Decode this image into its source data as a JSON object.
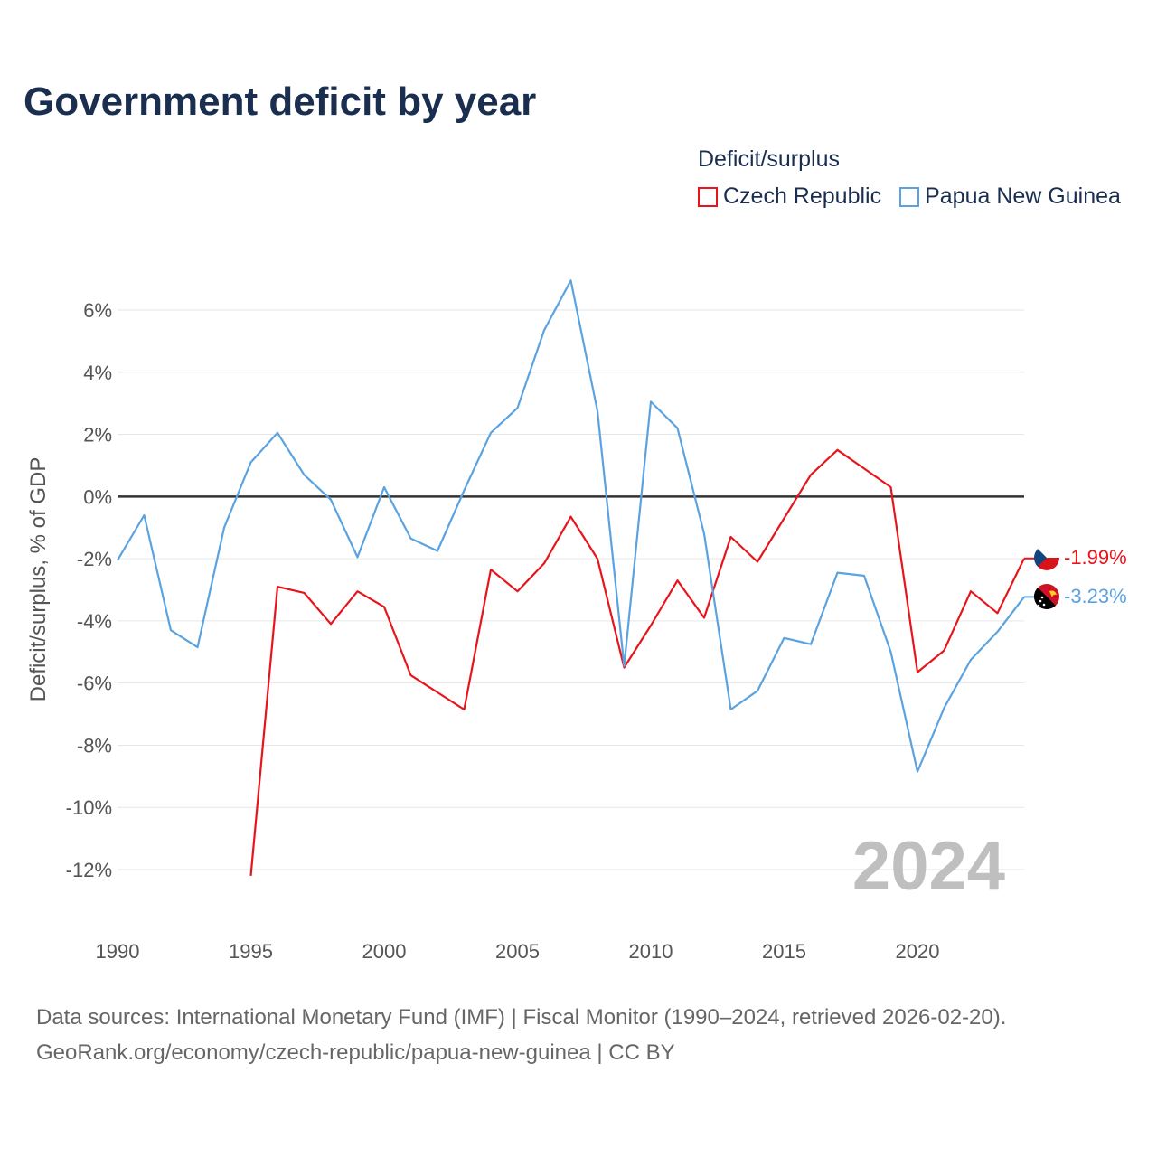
{
  "title": "Government deficit by year",
  "legend": {
    "title": "Deficit/surplus",
    "items": [
      {
        "label": "Czech Republic",
        "color": "#e8141b"
      },
      {
        "label": "Papua New Guinea",
        "color": "#5ba3e0"
      }
    ]
  },
  "source": {
    "line1": "Data sources: International Monetary Fund (IMF) | Fiscal Monitor (1990–2024, retrieved 2026-02-20).",
    "line2": "GeoRank.org/economy/czech-republic/papua-new-guinea | CC BY"
  },
  "chart_data": {
    "type": "line",
    "title": "Government deficit by year",
    "xlabel": "",
    "ylabel": "Deficit/surplus, % of GDP",
    "year_label": "2024",
    "xlim": [
      1990,
      2024
    ],
    "ylim": [
      -13,
      7
    ],
    "x_ticks": [
      1990,
      1995,
      2000,
      2005,
      2010,
      2015,
      2020
    ],
    "y_ticks": [
      6,
      4,
      2,
      0,
      -2,
      -4,
      -6,
      -8,
      -10,
      -12
    ],
    "y_tick_labels": [
      "6%",
      "4%",
      "2%",
      "0%",
      "-2%",
      "-4%",
      "-6%",
      "-8%",
      "-10%",
      "-12%"
    ],
    "zero_line": true,
    "series": [
      {
        "name": "Czech Republic",
        "color": "#e8141b",
        "end_label": "-1.99%",
        "flag": "czech-republic-flag-icon",
        "x": [
          1995,
          1996,
          1997,
          1998,
          1999,
          2000,
          2001,
          2002,
          2003,
          2004,
          2005,
          2006,
          2007,
          2008,
          2009,
          2010,
          2011,
          2012,
          2013,
          2014,
          2015,
          2016,
          2017,
          2018,
          2019,
          2020,
          2021,
          2022,
          2023,
          2024
        ],
        "values": [
          -12.2,
          -2.9,
          -3.1,
          -4.1,
          -3.05,
          -3.55,
          -5.75,
          -6.3,
          -6.85,
          -2.35,
          -3.05,
          -2.15,
          -0.65,
          -2.0,
          -5.5,
          -4.15,
          -2.7,
          -3.9,
          -1.3,
          -2.1,
          -0.7,
          0.7,
          1.5,
          0.9,
          0.3,
          -5.65,
          -4.95,
          -3.05,
          -3.75,
          -1.99
        ]
      },
      {
        "name": "Papua New Guinea",
        "color": "#5ba3e0",
        "end_label": "-3.23%",
        "flag": "papua-new-guinea-flag-icon",
        "x": [
          1990,
          1991,
          1992,
          1993,
          1994,
          1995,
          1996,
          1997,
          1998,
          1999,
          2000,
          2001,
          2002,
          2003,
          2004,
          2005,
          2006,
          2007,
          2008,
          2009,
          2010,
          2011,
          2012,
          2013,
          2014,
          2015,
          2016,
          2017,
          2018,
          2019,
          2020,
          2021,
          2022,
          2023,
          2024
        ],
        "values": [
          -2.05,
          -0.6,
          -4.3,
          -4.85,
          -1.0,
          1.1,
          2.05,
          0.7,
          -0.1,
          -1.95,
          0.3,
          -1.35,
          -1.75,
          0.2,
          2.05,
          2.85,
          5.35,
          6.95,
          2.75,
          -5.45,
          3.05,
          2.2,
          -1.2,
          -6.85,
          -6.25,
          -4.55,
          -4.75,
          -2.45,
          -2.55,
          -5.0,
          -8.85,
          -6.8,
          -5.25,
          -4.35,
          -3.23
        ]
      }
    ]
  }
}
